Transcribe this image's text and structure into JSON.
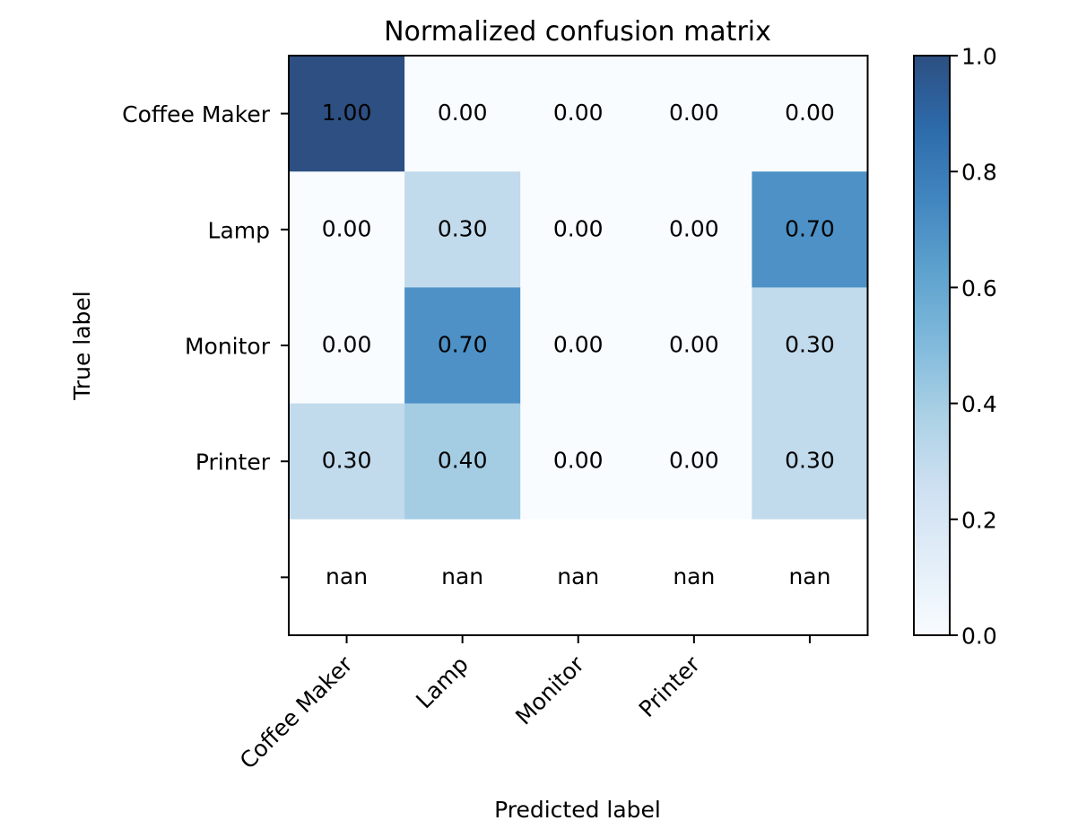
{
  "chart_data": {
    "type": "heatmap",
    "title": "Normalized confusion matrix",
    "xlabel": "Predicted label",
    "ylabel": "True label",
    "x_categories": [
      "Coffee Maker",
      "Lamp",
      "Monitor",
      "Printer",
      ""
    ],
    "y_categories": [
      "Coffee Maker",
      "Lamp",
      "Monitor",
      "Printer",
      ""
    ],
    "cells": [
      [
        "1.00",
        "0.00",
        "0.00",
        "0.00",
        "0.00"
      ],
      [
        "0.00",
        "0.30",
        "0.00",
        "0.00",
        "0.70"
      ],
      [
        "0.00",
        "0.70",
        "0.00",
        "0.00",
        "0.30"
      ],
      [
        "0.30",
        "0.40",
        "0.00",
        "0.00",
        "0.30"
      ],
      [
        "nan",
        "nan",
        "nan",
        "nan",
        "nan"
      ]
    ],
    "values": [
      [
        1.0,
        0.0,
        0.0,
        0.0,
        0.0
      ],
      [
        0.0,
        0.3,
        0.0,
        0.0,
        0.7
      ],
      [
        0.0,
        0.7,
        0.0,
        0.0,
        0.3
      ],
      [
        0.3,
        0.4,
        0.0,
        0.0,
        0.3
      ],
      [
        null,
        null,
        null,
        null,
        null
      ]
    ],
    "colorbar": {
      "range": [
        0.0,
        1.0
      ],
      "ticks": [
        "0.0",
        "0.2",
        "0.4",
        "0.6",
        "0.8",
        "1.0"
      ],
      "colormap": "Blues"
    },
    "grid": false
  }
}
